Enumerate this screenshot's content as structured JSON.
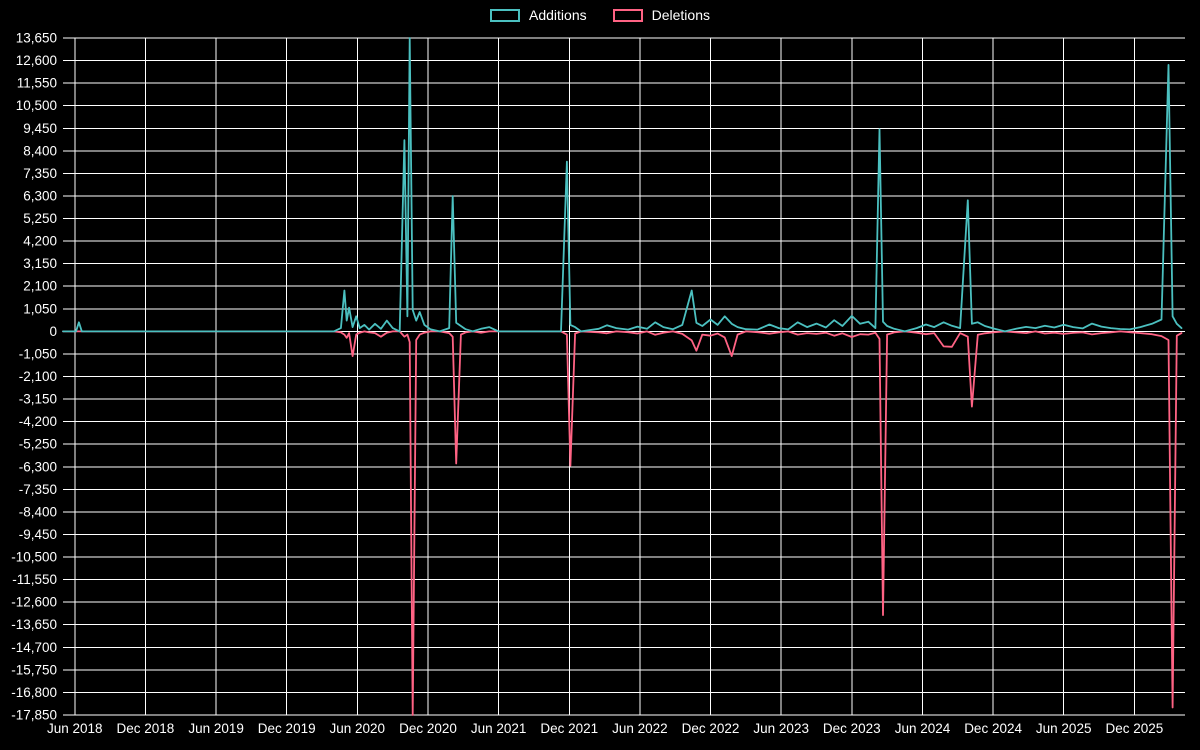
{
  "chart_data": {
    "type": "line",
    "title": "",
    "xlabel": "",
    "ylabel": "",
    "background_color": "#000000",
    "grid_color": "#ffffff",
    "text_color": "#ffffff",
    "grid": "on",
    "legend_position": "top-center",
    "legend": [
      {
        "name": "Additions",
        "color": "#4bc0c0"
      },
      {
        "name": "Deletions",
        "color": "#ff6384"
      }
    ],
    "x_unit": "months since Jun 2018",
    "xlim": [
      -1,
      94.3
    ],
    "ylim": [
      -17850,
      13650
    ],
    "y_tick_step": 1050,
    "x_ticks": [
      {
        "m": 0,
        "label": "Jun 2018"
      },
      {
        "m": 6,
        "label": "Dec 2018"
      },
      {
        "m": 12,
        "label": "Jun 2019"
      },
      {
        "m": 18,
        "label": "Dec 2019"
      },
      {
        "m": 24,
        "label": "Jun 2020"
      },
      {
        "m": 30,
        "label": "Dec 2020"
      },
      {
        "m": 36,
        "label": "Jun 2021"
      },
      {
        "m": 42,
        "label": "Dec 2021"
      },
      {
        "m": 48,
        "label": "Jun 2022"
      },
      {
        "m": 54,
        "label": "Dec 2022"
      },
      {
        "m": 60,
        "label": "Jun 2023"
      },
      {
        "m": 66,
        "label": "Dec 2023"
      },
      {
        "m": 72,
        "label": "Jun 2024"
      },
      {
        "m": 78,
        "label": "Dec 2024"
      },
      {
        "m": 84,
        "label": "Jun 2025"
      },
      {
        "m": 90,
        "label": "Dec 2025"
      }
    ],
    "x": [
      -1,
      0.1,
      0.35,
      0.6,
      22.0,
      22.6,
      22.9,
      23.1,
      23.3,
      23.6,
      23.9,
      24.2,
      24.6,
      25.0,
      25.5,
      26.0,
      26.5,
      27.0,
      27.6,
      28.0,
      28.25,
      28.45,
      28.7,
      29.0,
      29.3,
      29.7,
      30.2,
      31.0,
      31.8,
      32.1,
      32.4,
      32.8,
      33.2,
      33.8,
      34.5,
      35.2,
      36.0,
      41.3,
      41.8,
      42.1,
      42.5,
      43.0,
      44.5,
      45.2,
      46.0,
      47.0,
      47.8,
      48.6,
      49.3,
      50.0,
      50.8,
      51.6,
      52.4,
      52.8,
      53.3,
      54.0,
      54.6,
      55.2,
      55.8,
      56.3,
      57.0,
      58.0,
      59.0,
      59.8,
      60.6,
      61.4,
      62.2,
      63.0,
      63.8,
      64.5,
      65.2,
      66.0,
      66.7,
      67.4,
      68.0,
      68.35,
      68.65,
      69.0,
      69.6,
      70.5,
      71.5,
      72.3,
      73.0,
      73.8,
      74.5,
      75.2,
      75.85,
      76.2,
      76.7,
      77.3,
      78.0,
      79.0,
      80.0,
      80.8,
      81.6,
      82.4,
      83.2,
      84.0,
      84.8,
      85.6,
      86.4,
      87.2,
      88.0,
      88.8,
      89.6,
      90.5,
      91.5,
      92.3,
      92.9,
      93.25,
      93.6,
      94
    ],
    "series": [
      {
        "name": "Additions",
        "color": "#4bc0c0",
        "values": [
          0,
          0,
          420,
          0,
          0,
          150,
          1900,
          500,
          1100,
          200,
          700,
          150,
          300,
          80,
          350,
          120,
          500,
          150,
          0,
          8900,
          700,
          13650,
          1000,
          500,
          900,
          300,
          100,
          0,
          150,
          6300,
          400,
          250,
          100,
          0,
          120,
          200,
          0,
          0,
          7900,
          300,
          200,
          0,
          120,
          280,
          150,
          80,
          220,
          120,
          420,
          200,
          100,
          300,
          1900,
          400,
          250,
          550,
          300,
          700,
          350,
          200,
          100,
          80,
          320,
          150,
          90,
          420,
          200,
          360,
          180,
          520,
          250,
          720,
          350,
          450,
          150,
          9400,
          450,
          250,
          120,
          0,
          150,
          320,
          200,
          420,
          260,
          150,
          6100,
          350,
          420,
          250,
          140,
          0,
          130,
          210,
          150,
          260,
          180,
          310,
          200,
          140,
          360,
          220,
          150,
          110,
          90,
          200,
          350,
          550,
          12400,
          700,
          350,
          150
        ]
      },
      {
        "name": "Deletions",
        "color": "#ff6384",
        "values": [
          0,
          0,
          0,
          0,
          0,
          -50,
          -150,
          -300,
          -80,
          -1150,
          -150,
          -60,
          0,
          -50,
          -80,
          -250,
          -60,
          0,
          0,
          -250,
          -150,
          -500,
          -17850,
          -400,
          -150,
          -60,
          0,
          0,
          -80,
          -250,
          -6150,
          -150,
          -50,
          0,
          -60,
          0,
          0,
          0,
          -150,
          -6250,
          -100,
          0,
          -50,
          -90,
          0,
          -40,
          -100,
          0,
          -160,
          -60,
          0,
          -120,
          -420,
          -900,
          -150,
          -200,
          -100,
          -280,
          -1150,
          -150,
          0,
          -40,
          -110,
          -50,
          0,
          -150,
          -80,
          -120,
          -60,
          -200,
          -90,
          -260,
          -130,
          -150,
          -60,
          -350,
          -13200,
          -150,
          -50,
          0,
          -60,
          -130,
          -80,
          -700,
          -720,
          -80,
          -250,
          -3500,
          -160,
          -90,
          -50,
          0,
          -50,
          -80,
          0,
          -100,
          -60,
          -120,
          -70,
          -50,
          -140,
          -80,
          -50,
          0,
          -40,
          -80,
          -130,
          -220,
          -400,
          -17500,
          -200,
          -80
        ]
      }
    ]
  }
}
